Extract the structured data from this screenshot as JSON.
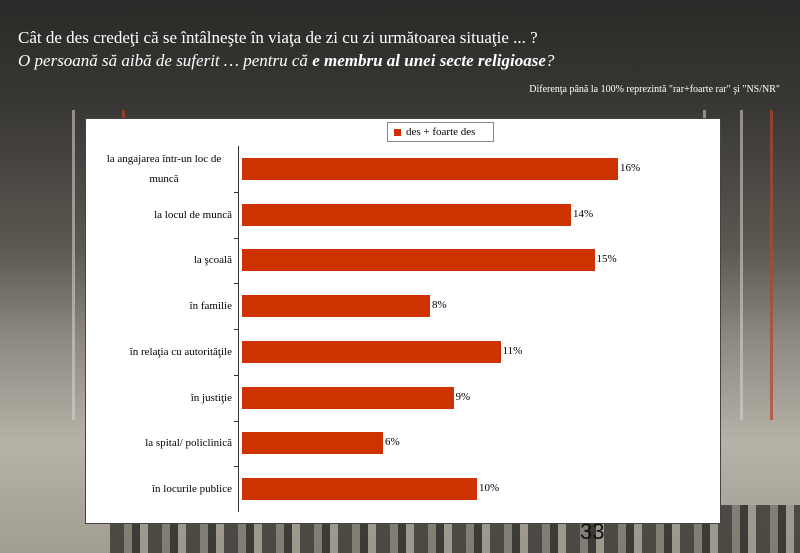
{
  "header": {
    "question": "Cât de des credeţi că se întâlneşte în viaţa de zi cu zi următoarea situaţie ... ?",
    "situation_prefix": "O persoană să aibă de suferit … pentru că ",
    "situation_bold": "e membru al unei secte religioase",
    "situation_suffix": "?",
    "note": "Diferenţa până la 100% reprezintă  \"rar+foarte rar\" şi \"NS/NR\""
  },
  "page_number": "33",
  "colors": {
    "bar": "#cc3300"
  },
  "chart_data": {
    "type": "bar",
    "orientation": "horizontal",
    "categories": [
      "la angajarea într-un loc de muncă",
      "la locul de muncă",
      "la şcoală",
      "în familie",
      "în relaţia cu autorităţile",
      "în justiţie",
      "la spital/ policlinică",
      "în locurile publice"
    ],
    "series": [
      {
        "name": "des + foarte des",
        "values": [
          16,
          14,
          15,
          8,
          11,
          9,
          6,
          10
        ]
      }
    ],
    "value_labels": [
      "16%",
      "14%",
      "15%",
      "8%",
      "11%",
      "9%",
      "6%",
      "10%"
    ],
    "xlim": [
      0,
      20
    ],
    "legend": "top",
    "grid": false
  }
}
